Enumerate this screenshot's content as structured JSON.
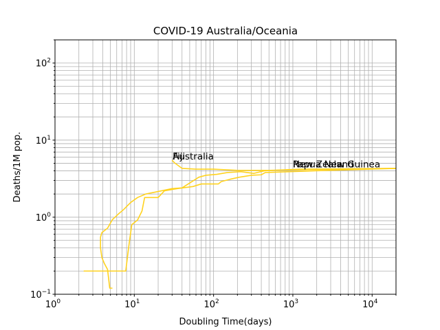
{
  "chart_data": {
    "type": "line",
    "title": "COVID-19  Australia/Oceania",
    "xlabel": "Doubling Time(days)",
    "ylabel": "Deaths/1M pop.",
    "xscale": "log",
    "yscale": "log",
    "xlim": [
      1,
      20000
    ],
    "ylim": [
      0.1,
      200
    ],
    "grid": true,
    "x_ticks": [
      {
        "base": "10",
        "exp": "0",
        "value": 1
      },
      {
        "base": "10",
        "exp": "1",
        "value": 10
      },
      {
        "base": "10",
        "exp": "2",
        "value": 100
      },
      {
        "base": "10",
        "exp": "3",
        "value": 1000
      },
      {
        "base": "10",
        "exp": "4",
        "value": 10000
      }
    ],
    "y_ticks": [
      {
        "base": "10",
        "exp": "−1",
        "value": 0.1
      },
      {
        "base": "10",
        "exp": "0",
        "value": 1
      },
      {
        "base": "10",
        "exp": "1",
        "value": 10
      },
      {
        "base": "10",
        "exp": "2",
        "value": 100
      }
    ],
    "series": [
      {
        "color": "#ffd21f",
        "points": [
          [
            2.3,
            0.2
          ],
          [
            7.8,
            0.2
          ],
          [
            8.6,
            0.45
          ],
          [
            9.3,
            0.8
          ],
          [
            11,
            0.92
          ],
          [
            12.5,
            1.2
          ],
          [
            13.5,
            1.8
          ],
          [
            20,
            1.8
          ],
          [
            24,
            2.2
          ],
          [
            35,
            2.35
          ],
          [
            55,
            2.5
          ],
          [
            70,
            2.7
          ],
          [
            115,
            2.7
          ],
          [
            125,
            2.9
          ],
          [
            160,
            3.1
          ],
          [
            210,
            3.3
          ],
          [
            300,
            3.5
          ],
          [
            400,
            3.55
          ],
          [
            450,
            3.8
          ],
          [
            1900,
            4.0
          ],
          [
            20000,
            4.3
          ]
        ]
      },
      {
        "color": "#ffd21f",
        "points": [
          [
            5.3,
            0.12
          ],
          [
            4.9,
            0.12
          ],
          [
            4.6,
            0.21
          ],
          [
            4.2,
            0.25
          ],
          [
            3.9,
            0.3
          ],
          [
            3.75,
            0.4
          ],
          [
            3.75,
            0.55
          ],
          [
            3.9,
            0.63
          ],
          [
            4.6,
            0.72
          ],
          [
            5.3,
            0.93
          ],
          [
            6.3,
            1.1
          ],
          [
            7.3,
            1.25
          ],
          [
            9,
            1.55
          ],
          [
            11,
            1.8
          ],
          [
            14,
            2.0
          ],
          [
            22,
            2.2
          ],
          [
            30,
            2.35
          ],
          [
            40,
            2.4
          ],
          [
            65,
            3.3
          ],
          [
            80,
            3.5
          ],
          [
            110,
            3.6
          ],
          [
            150,
            3.8
          ],
          [
            220,
            3.9
          ],
          [
            320,
            3.7
          ],
          [
            440,
            4.0
          ],
          [
            1200,
            4.2
          ],
          [
            20000,
            4.3
          ]
        ]
      },
      {
        "color": "#ffd21f",
        "points": [
          [
            30,
            5.5
          ],
          [
            32,
            5.1
          ],
          [
            40,
            4.3
          ],
          [
            60,
            4.2
          ],
          [
            100,
            4.2
          ],
          [
            200,
            4.05
          ],
          [
            500,
            4.05
          ],
          [
            1500,
            4.15
          ],
          [
            20000,
            4.3
          ]
        ]
      }
    ],
    "annotations": [
      {
        "text": "Fiji",
        "x": 30.5,
        "y": 5.5
      },
      {
        "text": "Australia",
        "x": 30.5,
        "y": 5.5
      },
      {
        "text": "Papua New Guinea",
        "x": 1000,
        "y": 4.35
      },
      {
        "text": "New Zealand",
        "x": 1000,
        "y": 4.35
      }
    ]
  }
}
